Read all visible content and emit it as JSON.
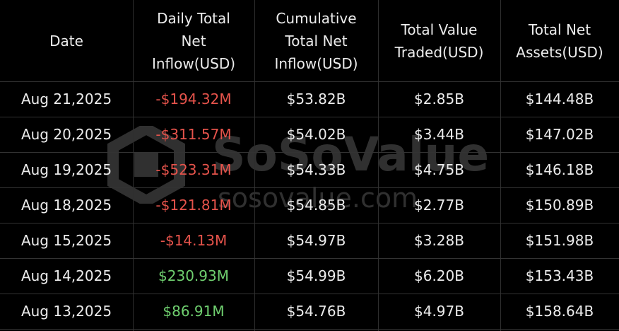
{
  "table": {
    "columns": [
      {
        "lines": [
          "Date"
        ]
      },
      {
        "lines": [
          "Daily Total",
          "Net",
          "Inflow(USD)"
        ]
      },
      {
        "lines": [
          "Cumulative",
          "Total Net",
          "Inflow(USD)"
        ]
      },
      {
        "lines": [
          "Total Value",
          "Traded(USD)"
        ]
      },
      {
        "lines": [
          "Total Net",
          "Assets(USD)"
        ]
      }
    ],
    "rows": [
      {
        "cells": [
          "Aug 21,2025",
          "-$194.32M",
          "$53.82B",
          "$2.85B",
          "$144.48B"
        ],
        "inflow_color": "#e5534b"
      },
      {
        "cells": [
          "Aug 20,2025",
          "-$311.57M",
          "$54.02B",
          "$3.44B",
          "$147.02B"
        ],
        "inflow_color": "#e5534b"
      },
      {
        "cells": [
          "Aug 19,2025",
          "-$523.31M",
          "$54.33B",
          "$4.75B",
          "$146.18B"
        ],
        "inflow_color": "#e5534b"
      },
      {
        "cells": [
          "Aug 18,2025",
          "-$121.81M",
          "$54.85B",
          "$2.77B",
          "$150.89B"
        ],
        "inflow_color": "#e5534b"
      },
      {
        "cells": [
          "Aug 15,2025",
          "-$14.13M",
          "$54.97B",
          "$3.28B",
          "$151.98B"
        ],
        "inflow_color": "#e5534b"
      },
      {
        "cells": [
          "Aug 14,2025",
          "$230.93M",
          "$54.99B",
          "$6.20B",
          "$153.43B"
        ],
        "inflow_color": "#6fcf6f"
      },
      {
        "cells": [
          "Aug 13,2025",
          "$86.91M",
          "$54.76B",
          "$4.97B",
          "$158.64B"
        ],
        "inflow_color": "#6fcf6f"
      }
    ]
  },
  "watermark": {
    "brand": "SoSoValue",
    "site": "sosovalue.com"
  }
}
